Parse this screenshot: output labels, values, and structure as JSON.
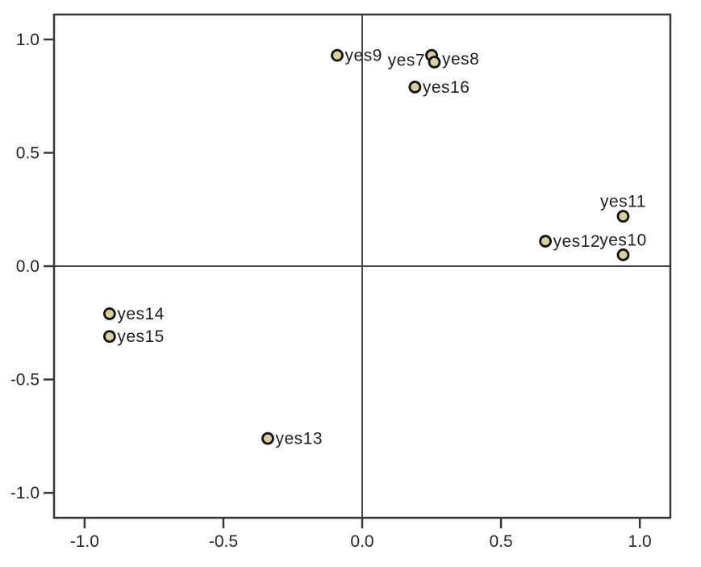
{
  "chart_data": {
    "type": "scatter",
    "title": "",
    "xlabel": "",
    "ylabel": "",
    "xlim": [
      -1.11,
      1.11
    ],
    "ylim": [
      -1.11,
      1.11
    ],
    "grid": false,
    "legend": "none",
    "reference_lines": {
      "vertical_at_x": 0.0,
      "horizontal_at_y": 0.0
    },
    "x_ticks": [
      {
        "value": -1.0,
        "label": "-1.0"
      },
      {
        "value": -0.5,
        "label": "-0.5"
      },
      {
        "value": 0.0,
        "label": "0.0"
      },
      {
        "value": 0.5,
        "label": "0.5"
      },
      {
        "value": 1.0,
        "label": "1.0"
      }
    ],
    "y_ticks": [
      {
        "value": 1.0,
        "label": "1.0"
      },
      {
        "value": 0.5,
        "label": "0.5"
      },
      {
        "value": 0.0,
        "label": "0.0"
      },
      {
        "value": -0.5,
        "label": "-0.5"
      },
      {
        "value": -1.0,
        "label": "-1.0"
      }
    ],
    "points": [
      {
        "label": "yes9",
        "x": -0.09,
        "y": 0.93,
        "label_pos": "right"
      },
      {
        "label": "yes7",
        "x": 0.25,
        "y": 0.93,
        "label_pos": "left",
        "dy": 6
      },
      {
        "label": "yes8",
        "x": 0.26,
        "y": 0.9,
        "label_pos": "right",
        "dy": -4
      },
      {
        "label": "yes16",
        "x": 0.19,
        "y": 0.79,
        "label_pos": "right"
      },
      {
        "label": "yes11",
        "x": 0.94,
        "y": 0.22,
        "label_pos": "above"
      },
      {
        "label": "yes12",
        "x": 0.66,
        "y": 0.11,
        "label_pos": "right"
      },
      {
        "label": "yes10",
        "x": 0.94,
        "y": 0.05,
        "label_pos": "above"
      },
      {
        "label": "yes14",
        "x": -0.91,
        "y": -0.21,
        "label_pos": "right"
      },
      {
        "label": "yes15",
        "x": -0.91,
        "y": -0.31,
        "label_pos": "right"
      },
      {
        "label": "yes13",
        "x": -0.34,
        "y": -0.76,
        "label_pos": "right"
      }
    ],
    "colors": {
      "background": "#ffffff",
      "frame": "#383838",
      "reference_line": "#454545",
      "tick": "#383838",
      "tick_label": "#262626",
      "point_fill": "#d7d09c",
      "point_stroke": "#141414",
      "point_label": "#1e1e1e"
    }
  }
}
